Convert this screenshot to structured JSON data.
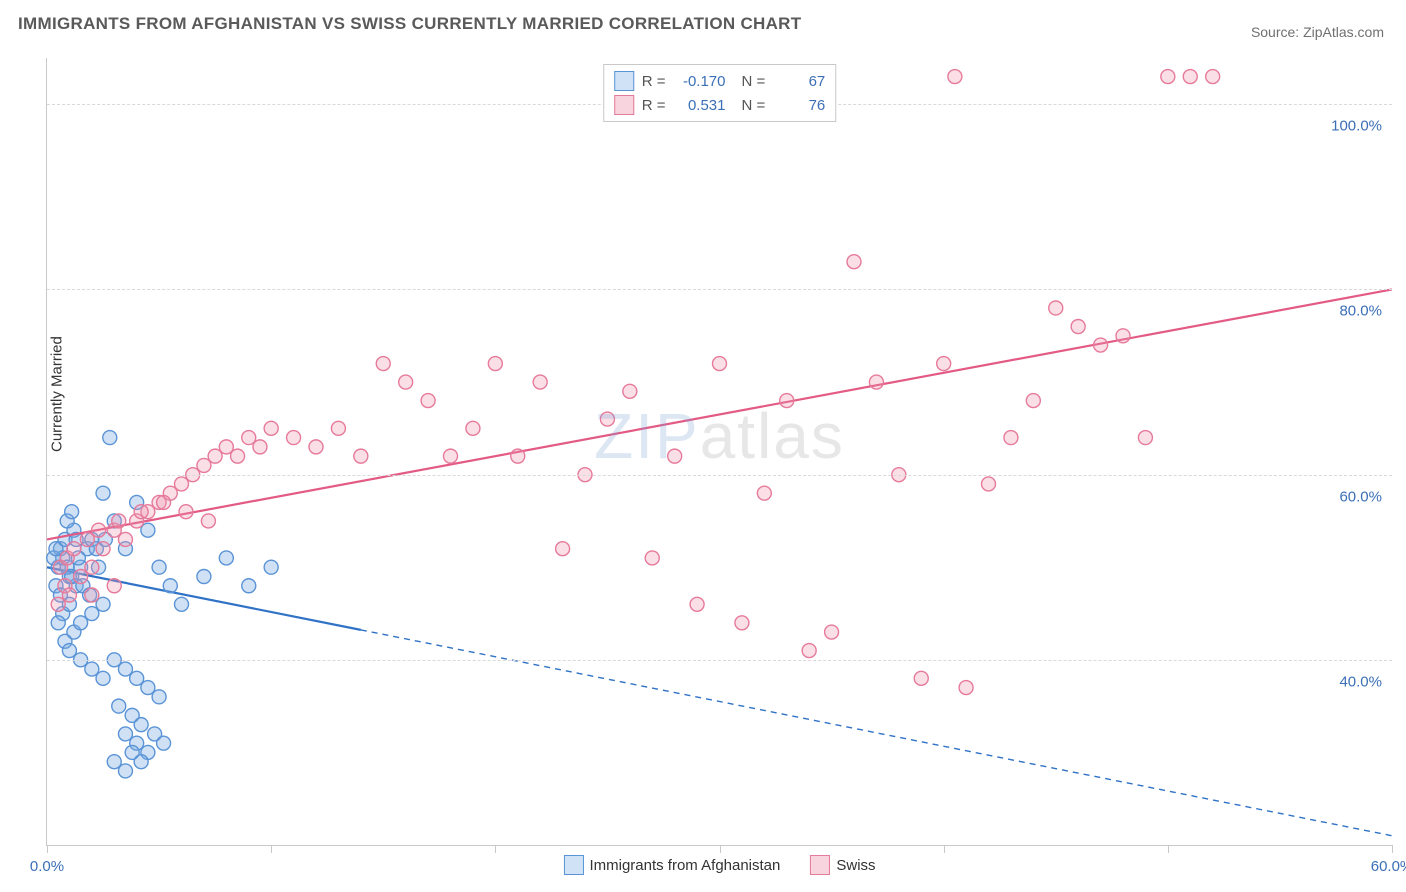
{
  "title": "IMMIGRANTS FROM AFGHANISTAN VS SWISS CURRENTLY MARRIED CORRELATION CHART",
  "source": "Source: ZipAtlas.com",
  "ylabel": "Currently Married",
  "watermark_a": "ZIP",
  "watermark_b": "atlas",
  "chart": {
    "type": "scatter",
    "background_color": "#ffffff",
    "grid_color": "#d9d9d9",
    "axis_color": "#c9c9c9",
    "tick_label_color": "#3b6fb6",
    "label_fontsize": 15,
    "title_fontsize": 17,
    "x": {
      "min": 0,
      "max": 60,
      "ticks": [
        0,
        10,
        20,
        30,
        40,
        50,
        60
      ],
      "tick_labels": [
        "0.0%",
        "",
        "",
        "",
        "",
        "",
        "60.0%"
      ]
    },
    "y": {
      "min": 20,
      "max": 105,
      "gridlines": [
        40,
        60,
        80,
        100
      ],
      "tick_labels": [
        "40.0%",
        "60.0%",
        "80.0%",
        "100.0%"
      ]
    },
    "marker_radius": 7,
    "marker_stroke_width": 1.4,
    "series": [
      {
        "name": "Immigrants from Afghanistan",
        "fill": "rgba(120,170,225,0.35)",
        "stroke": "#5a94d6",
        "swatch_fill": "#cfe2f6",
        "swatch_stroke": "#5a94d6",
        "R": "-0.170",
        "N": "67",
        "points": [
          [
            0.5,
            50
          ],
          [
            0.6,
            52
          ],
          [
            0.8,
            53
          ],
          [
            0.7,
            51
          ],
          [
            1.0,
            49
          ],
          [
            1.2,
            54
          ],
          [
            0.4,
            48
          ],
          [
            0.9,
            55
          ],
          [
            1.5,
            50
          ],
          [
            1.3,
            53
          ],
          [
            1.8,
            52
          ],
          [
            0.6,
            47
          ],
          [
            1.1,
            56
          ],
          [
            1.4,
            51
          ],
          [
            2.0,
            53
          ],
          [
            2.3,
            50
          ],
          [
            0.7,
            45
          ],
          [
            1.0,
            46
          ],
          [
            1.3,
            48
          ],
          [
            0.5,
            44
          ],
          [
            2.8,
            64
          ],
          [
            2.5,
            58
          ],
          [
            3.0,
            55
          ],
          [
            3.5,
            52
          ],
          [
            4.0,
            57
          ],
          [
            4.5,
            54
          ],
          [
            5.0,
            50
          ],
          [
            5.5,
            48
          ],
          [
            6.0,
            46
          ],
          [
            7.0,
            49
          ],
          [
            8.0,
            51
          ],
          [
            9.0,
            48
          ],
          [
            10.0,
            50
          ],
          [
            0.8,
            42
          ],
          [
            1.2,
            43
          ],
          [
            1.5,
            44
          ],
          [
            2.0,
            45
          ],
          [
            2.5,
            46
          ],
          [
            3.0,
            40
          ],
          [
            3.5,
            39
          ],
          [
            4.0,
            38
          ],
          [
            4.5,
            37
          ],
          [
            5.0,
            36
          ],
          [
            3.2,
            35
          ],
          [
            3.8,
            34
          ],
          [
            4.2,
            33
          ],
          [
            1.0,
            41
          ],
          [
            1.5,
            40
          ],
          [
            2.0,
            39
          ],
          [
            2.5,
            38
          ],
          [
            3.5,
            32
          ],
          [
            4.0,
            31
          ],
          [
            4.5,
            30
          ],
          [
            3.0,
            29
          ],
          [
            3.5,
            28
          ],
          [
            3.8,
            30
          ],
          [
            4.2,
            29
          ],
          [
            4.8,
            32
          ],
          [
            5.2,
            31
          ],
          [
            2.2,
            52
          ],
          [
            2.6,
            53
          ],
          [
            0.3,
            51
          ],
          [
            0.4,
            52
          ],
          [
            0.9,
            50
          ],
          [
            1.1,
            49
          ],
          [
            1.6,
            48
          ],
          [
            1.9,
            47
          ]
        ],
        "trend": {
          "y_at_x0": 50,
          "y_at_xmax": 21,
          "solid_until_x": 14,
          "color": "#2f72c6",
          "width": 2.2
        }
      },
      {
        "name": "Swiss",
        "fill": "rgba(240,150,175,0.30)",
        "stroke": "#e67a9a",
        "swatch_fill": "#f8d4de",
        "swatch_stroke": "#e67a9a",
        "R": "0.531",
        "N": "76",
        "points": [
          [
            0.5,
            46
          ],
          [
            0.8,
            48
          ],
          [
            1.0,
            47
          ],
          [
            1.5,
            49
          ],
          [
            2.0,
            50
          ],
          [
            2.5,
            52
          ],
          [
            3.0,
            54
          ],
          [
            3.5,
            53
          ],
          [
            4.0,
            55
          ],
          [
            4.5,
            56
          ],
          [
            5.0,
            57
          ],
          [
            5.5,
            58
          ],
          [
            6.0,
            59
          ],
          [
            6.5,
            60
          ],
          [
            7.0,
            61
          ],
          [
            7.5,
            62
          ],
          [
            8.0,
            63
          ],
          [
            8.5,
            62
          ],
          [
            9.0,
            64
          ],
          [
            9.5,
            63
          ],
          [
            10.0,
            65
          ],
          [
            11.0,
            64
          ],
          [
            12.0,
            63
          ],
          [
            13.0,
            65
          ],
          [
            14.0,
            62
          ],
          [
            15.0,
            72
          ],
          [
            16.0,
            70
          ],
          [
            17.0,
            68
          ],
          [
            18.0,
            62
          ],
          [
            19.0,
            65
          ],
          [
            20.0,
            72
          ],
          [
            21.0,
            62
          ],
          [
            22.0,
            70
          ],
          [
            23.0,
            52
          ],
          [
            24.0,
            60
          ],
          [
            25.0,
            66
          ],
          [
            26.0,
            69
          ],
          [
            27.0,
            51
          ],
          [
            28.0,
            62
          ],
          [
            29.0,
            46
          ],
          [
            30.0,
            72
          ],
          [
            31.0,
            44
          ],
          [
            32.0,
            58
          ],
          [
            33.0,
            68
          ],
          [
            34.0,
            41
          ],
          [
            35.0,
            43
          ],
          [
            36.0,
            83
          ],
          [
            37.0,
            70
          ],
          [
            38.0,
            60
          ],
          [
            39.0,
            38
          ],
          [
            40.0,
            72
          ],
          [
            41.0,
            37
          ],
          [
            42.0,
            59
          ],
          [
            43.0,
            64
          ],
          [
            44.0,
            68
          ],
          [
            45.0,
            78
          ],
          [
            46.0,
            76
          ],
          [
            47.0,
            74
          ],
          [
            48.0,
            75
          ],
          [
            49.0,
            64
          ],
          [
            50.0,
            103
          ],
          [
            51.0,
            103
          ],
          [
            52.0,
            103
          ],
          [
            40.5,
            103
          ],
          [
            0.6,
            50
          ],
          [
            0.9,
            51
          ],
          [
            1.2,
            52
          ],
          [
            1.8,
            53
          ],
          [
            2.3,
            54
          ],
          [
            3.2,
            55
          ],
          [
            4.2,
            56
          ],
          [
            5.2,
            57
          ],
          [
            6.2,
            56
          ],
          [
            7.2,
            55
          ],
          [
            2.0,
            47
          ],
          [
            3.0,
            48
          ]
        ],
        "trend": {
          "y_at_x0": 53,
          "y_at_xmax": 80,
          "solid_until_x": 60,
          "color": "#e35a85",
          "width": 2.2
        }
      }
    ]
  },
  "legend_bottom": [
    {
      "label": "Immigrants from Afghanistan",
      "fill": "#cfe2f6",
      "stroke": "#5a94d6"
    },
    {
      "label": "Swiss",
      "fill": "#f8d4de",
      "stroke": "#e67a9a"
    }
  ]
}
